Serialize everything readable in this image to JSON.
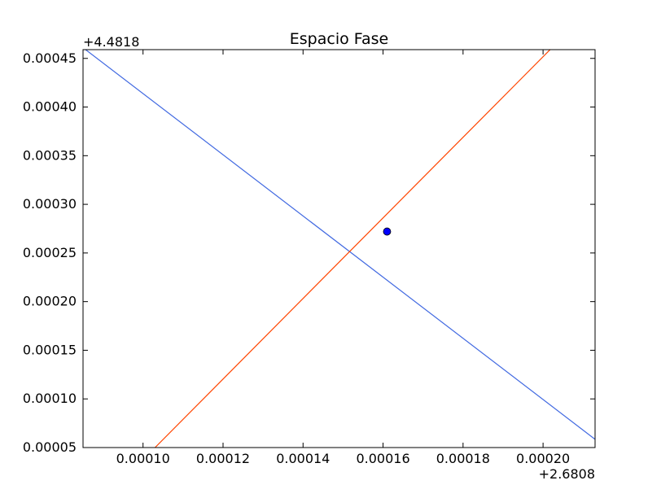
{
  "chart_data": {
    "type": "line",
    "title": "Espacio Fase",
    "xlabel": "",
    "ylabel": "",
    "x_offset_label": "+2.6808",
    "y_offset_label": "+4.4818",
    "xlim": [
      8.5e-05,
      0.000213
    ],
    "ylim": [
      5e-05,
      0.000459
    ],
    "x_ticks": [
      0.0001,
      0.00012,
      0.00014,
      0.00016,
      0.00018,
      0.0002
    ],
    "x_tick_labels": [
      "0.00010",
      "0.00012",
      "0.00014",
      "0.00016",
      "0.00018",
      "0.00020"
    ],
    "y_ticks": [
      5e-05,
      0.0001,
      0.00015,
      0.0002,
      0.00025,
      0.0003,
      0.00035,
      0.0004,
      0.00045
    ],
    "y_tick_labels": [
      "0.00005",
      "0.00010",
      "0.00015",
      "0.00020",
      "0.00025",
      "0.00030",
      "0.00035",
      "0.00040",
      "0.00045"
    ],
    "grid": false,
    "series": [
      {
        "type": "line",
        "color": "#4169e1",
        "x": [
          8.5e-05,
          0.000213
        ],
        "y": [
          0.000461,
          5.85e-05
        ]
      },
      {
        "type": "line",
        "color": "#ff4500",
        "x": [
          0.000103,
          0.000202
        ],
        "y": [
          5e-05,
          0.00046
        ]
      },
      {
        "type": "scatter",
        "color": "#0000ff",
        "x": [
          0.000161
        ],
        "y": [
          0.000272
        ]
      }
    ]
  }
}
